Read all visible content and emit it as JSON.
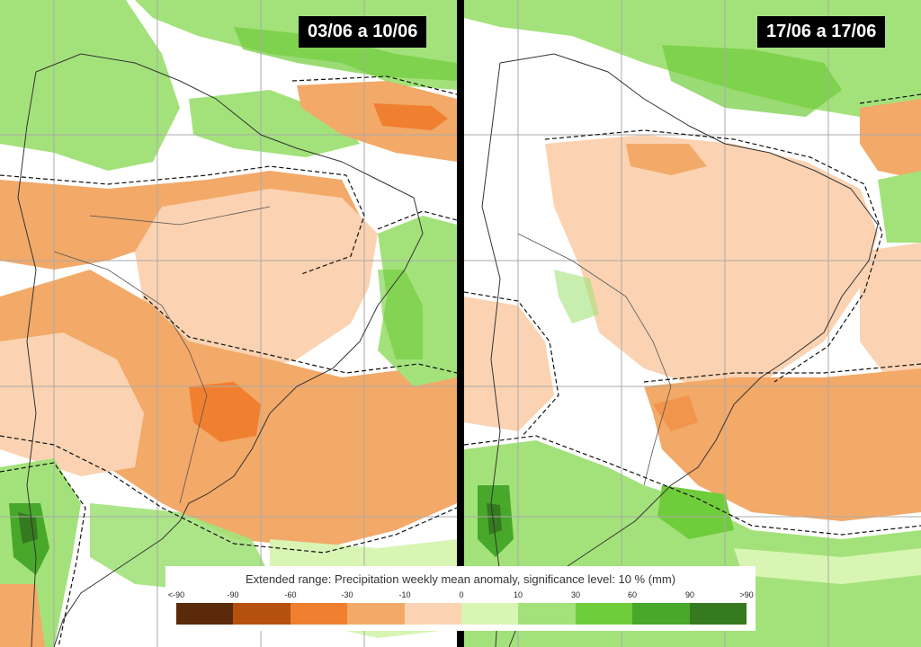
{
  "panels": [
    {
      "date_range": "03/06 a 10/06"
    },
    {
      "date_range": "17/06 a 17/06"
    }
  ],
  "legend": {
    "title": "Extended range: Precipitation weekly mean anomaly, significance level: 10 % (mm)",
    "ticks": [
      "<-90",
      "-90",
      "-60",
      "-30",
      "-10",
      "0",
      "10",
      "30",
      "60",
      "90",
      ">90"
    ],
    "colors": [
      "#5a2a0a",
      "#b5500f",
      "#f08030",
      "#f3a968",
      "#fbd3b2",
      "#d8f5b4",
      "#a3e27a",
      "#6fcc3a",
      "#48a82a",
      "#357a1e"
    ]
  }
}
